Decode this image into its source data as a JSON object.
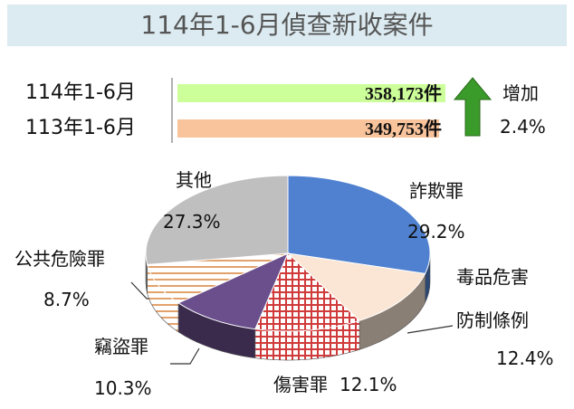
{
  "title": "114年1-6月偵查新收案件",
  "chart_data": [
    {
      "type": "bar",
      "orientation": "horizontal",
      "categories": [
        "114年1-6月",
        "113年1-6月"
      ],
      "values": [
        358173,
        349753
      ],
      "value_labels": [
        "358,173件",
        "349,753件"
      ],
      "colors": [
        "#ccff99",
        "#f9c49c"
      ]
    },
    {
      "type": "pie",
      "categories": [
        "詐欺罪",
        "毒品危害防制條例",
        "傷害罪",
        "竊盜罪",
        "公共危險罪",
        "其他"
      ],
      "values": [
        29.2,
        12.4,
        12.1,
        10.3,
        8.7,
        27.3
      ],
      "value_labels": [
        "29.2%",
        "12.4%",
        "12.1%",
        "10.3%",
        "8.7%",
        "27.3%"
      ],
      "colors": [
        "#4f81d0",
        "#fbe6d5",
        "#d03a3a",
        "#6a4f8c",
        "#d9843a",
        "#bfbfbf"
      ],
      "fills": [
        "solid",
        "solid",
        "grid",
        "solid",
        "stripes",
        "solid"
      ]
    }
  ],
  "change": {
    "label": "增加",
    "value": "2.4%"
  }
}
